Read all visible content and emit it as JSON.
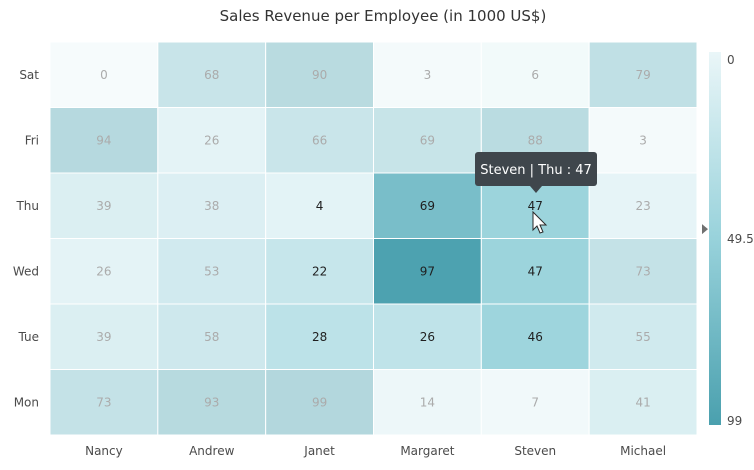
{
  "chart_data": {
    "type": "heatmap",
    "title": "Sales Revenue per Employee (in 1000 US$)",
    "xlabel": "",
    "ylabel": "",
    "x_categories": [
      "Nancy",
      "Andrew",
      "Janet",
      "Margaret",
      "Steven",
      "Michael"
    ],
    "y_categories": [
      "Sat",
      "Fri",
      "Thu",
      "Wed",
      "Tue",
      "Mon"
    ],
    "values": [
      [
        0,
        68,
        90,
        3,
        6,
        79
      ],
      [
        94,
        26,
        66,
        69,
        88,
        3
      ],
      [
        39,
        38,
        4,
        69,
        47,
        23
      ],
      [
        26,
        53,
        22,
        97,
        47,
        73
      ],
      [
        39,
        58,
        28,
        26,
        46,
        55
      ],
      [
        73,
        93,
        99,
        14,
        7,
        41
      ]
    ],
    "highlighted_cells": [
      {
        "x": "Janet",
        "y": "Thu"
      },
      {
        "x": "Janet",
        "y": "Wed"
      },
      {
        "x": "Janet",
        "y": "Tue"
      },
      {
        "x": "Margaret",
        "y": "Thu"
      },
      {
        "x": "Margaret",
        "y": "Wed"
      },
      {
        "x": "Margaret",
        "y": "Tue"
      },
      {
        "x": "Steven",
        "y": "Thu"
      },
      {
        "x": "Steven",
        "y": "Wed"
      },
      {
        "x": "Steven",
        "y": "Tue"
      }
    ],
    "legend": {
      "min_label": "0",
      "mid_label": "49.5",
      "max_label": "99",
      "min": 0,
      "max": 99,
      "pointer_value": 47,
      "placement": "right"
    },
    "color_scale": {
      "low": "#eaf6f8",
      "mid": "#98d2db",
      "high": "#4aa0ae"
    },
    "tooltip": {
      "text": "Steven | Thu : 47",
      "x": "Steven",
      "y": "Thu"
    }
  },
  "colors": {
    "dim_text": "#ababab",
    "active_text": "#1f1f1f",
    "tooltip_bg": "#3f464c",
    "grid_line": "#ffffff",
    "pointer": "#707070"
  }
}
